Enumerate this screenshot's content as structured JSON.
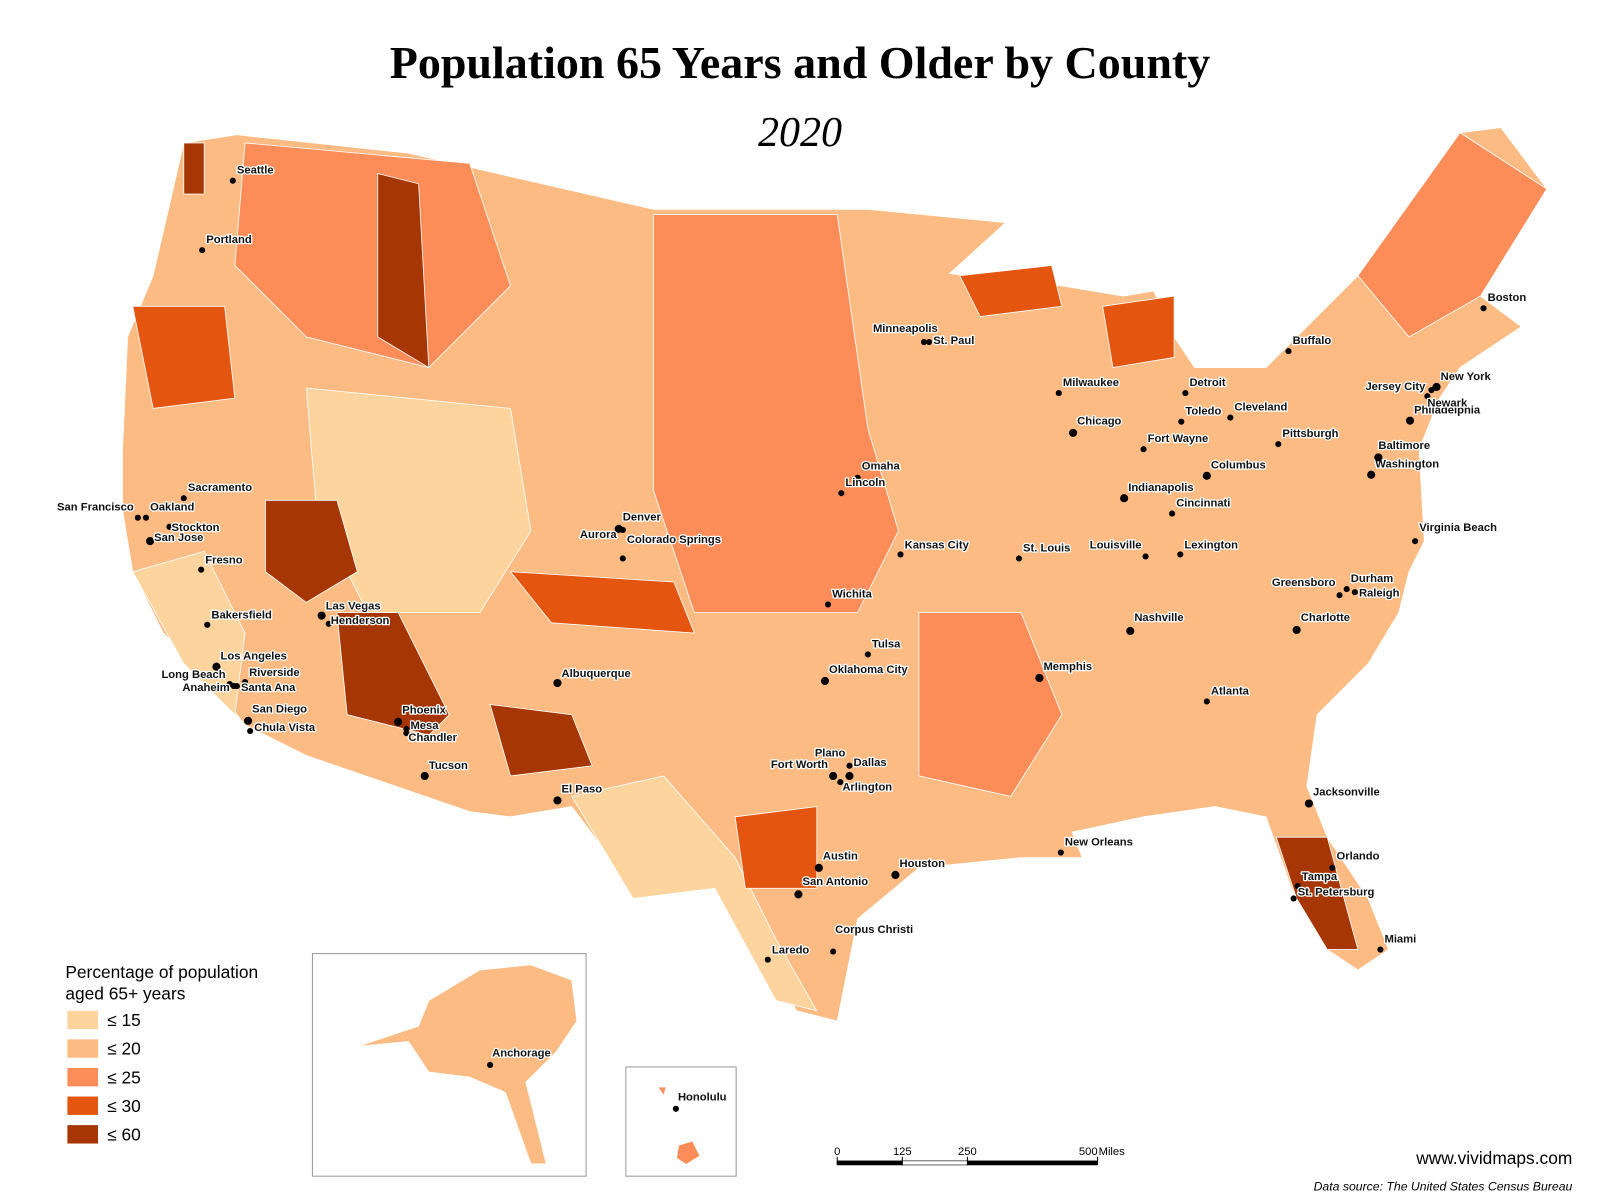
{
  "title": "Population 65 Years and Older by County",
  "subtitle": "2020",
  "legend": {
    "title": [
      "Percentage of population",
      "aged 65+ years"
    ],
    "items": [
      {
        "label": "≤ 15",
        "color": "#fdd49e"
      },
      {
        "label": "≤ 20",
        "color": "#fdbb84"
      },
      {
        "label": "≤ 25",
        "color": "#fc8d59"
      },
      {
        "label": "≤ 30",
        "color": "#e4550f"
      },
      {
        "label": "≤ 60",
        "color": "#a63603"
      }
    ]
  },
  "cities": [
    "Seattle",
    "Portland",
    "Sacramento",
    "San Francisco",
    "Oakland",
    "Stockton",
    "San Jose",
    "Fresno",
    "Bakersfield",
    "Las Vegas",
    "Henderson",
    "Los Angeles",
    "Long Beach",
    "Riverside",
    "Anaheim",
    "Santa Ana",
    "San Diego",
    "Chula Vista",
    "Phoenix",
    "Mesa",
    "Chandler",
    "Tucson",
    "El Paso",
    "Albuquerque",
    "Denver",
    "Aurora",
    "Colorado Springs",
    "Minneapolis",
    "St. Paul",
    "Omaha",
    "Lincoln",
    "Kansas City",
    "Wichita",
    "Tulsa",
    "Oklahoma City",
    "Dallas",
    "Fort Worth",
    "Plano",
    "Arlington",
    "Austin",
    "San Antonio",
    "Houston",
    "Corpus Christi",
    "Laredo",
    "Milwaukee",
    "Chicago",
    "Detroit",
    "Toledo",
    "Cleveland",
    "Fort Wayne",
    "Indianapolis",
    "Columbus",
    "Cincinnati",
    "Louisville",
    "Lexington",
    "St. Louis",
    "Memphis",
    "Nashville",
    "Atlanta",
    "New Orleans",
    "Jacksonville",
    "Orlando",
    "Tampa",
    "St. Petersburg",
    "Miami",
    "Charlotte",
    "Greensboro",
    "Durham",
    "Raleigh",
    "Virginia Beach",
    "Washington",
    "Baltimore",
    "Philadelphia",
    "Newark",
    "Jersey City",
    "New York",
    "Pittsburgh",
    "Buffalo",
    "Boston",
    "Anchorage",
    "Honolulu"
  ],
  "scale_bar": {
    "ticks": [
      0,
      125,
      250,
      500
    ],
    "unit": "Miles"
  },
  "website": "www.vividmaps.com",
  "source": "Data source: The United States Census Bureau"
}
